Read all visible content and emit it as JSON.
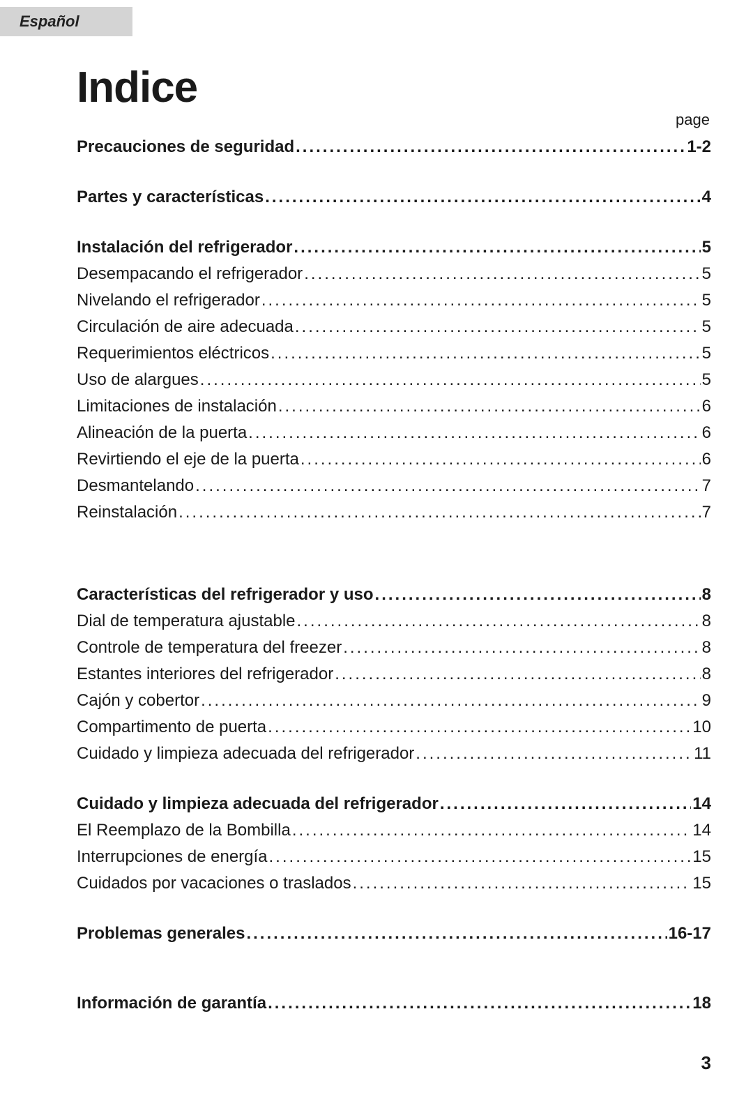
{
  "language_tab": "Español",
  "title": "Indice",
  "page_label": "page",
  "footer_page": "3",
  "sections": [
    {
      "type": "bold",
      "label": "Precauciones de seguridad ",
      "page": "1-2"
    },
    {
      "type": "gap",
      "size": "sm"
    },
    {
      "type": "bold",
      "label": "Partes y características ",
      "page": "4"
    },
    {
      "type": "gap",
      "size": "sm"
    },
    {
      "type": "bold",
      "label": "Instalación del refrigerador",
      "page": "5"
    },
    {
      "type": "plain",
      "label": "Desempacando el refrigerador ",
      "page": "5"
    },
    {
      "type": "plain",
      "label": "Nivelando el refrigerador",
      "page": "5"
    },
    {
      "type": "plain",
      "label": "Circulación de aire adecuada ",
      "page": "5"
    },
    {
      "type": "plain",
      "label": "Requerimientos eléctricos ",
      "page": "5"
    },
    {
      "type": "plain",
      "label": "Uso de alargues ",
      "page": "5"
    },
    {
      "type": "plain",
      "label": "Limitaciones de instalación ",
      "page": "6"
    },
    {
      "type": "plain",
      "label": "Alineación de la puerta ",
      "page": "6"
    },
    {
      "type": "plain",
      "label": "Revirtiendo  el eje de la puerta",
      "page": "6"
    },
    {
      "type": "plain",
      "label": "Desmantelando ",
      "page": "7"
    },
    {
      "type": "plain",
      "label": "Reinstalación ",
      "page": "7"
    },
    {
      "type": "gap",
      "size": "lg"
    },
    {
      "type": "bold",
      "label": "Características del refrigerador y uso ",
      "page": "8"
    },
    {
      "type": "plain",
      "label": "Dial de temperatura ajustable",
      "page": "8"
    },
    {
      "type": "plain",
      "label": "Controle de temperatura del freezer ",
      "page": "8"
    },
    {
      "type": "plain",
      "label": "Estantes interiores del refrigerador ",
      "page": "8"
    },
    {
      "type": "plain",
      "label": "Cajón y cobertor ",
      "page": "9"
    },
    {
      "type": "plain",
      "label": "Compartimento de puerta ",
      "page": "10"
    },
    {
      "type": "plain",
      "label": "Cuidado y limpieza adecuada del refrigerador ",
      "page": "11"
    },
    {
      "type": "gap",
      "size": "sm"
    },
    {
      "type": "bold",
      "label": "Cuidado y limpieza adecuada del refrigerador ",
      "page": "14"
    },
    {
      "type": "plain",
      "label": "El Reemplazo de la Bombilla ",
      "page": "14"
    },
    {
      "type": "plain",
      "label": "Interrupciones de energía",
      "page": "15"
    },
    {
      "type": "plain",
      "label": "Cuidados por vacaciones o traslados ",
      "page": "15"
    },
    {
      "type": "gap",
      "size": "sm"
    },
    {
      "type": "bold",
      "label": "Problemas generales ",
      "page": "16-17"
    },
    {
      "type": "gap",
      "size": "md"
    },
    {
      "type": "bold",
      "label": "Información de garantía ",
      "page": "18"
    }
  ]
}
